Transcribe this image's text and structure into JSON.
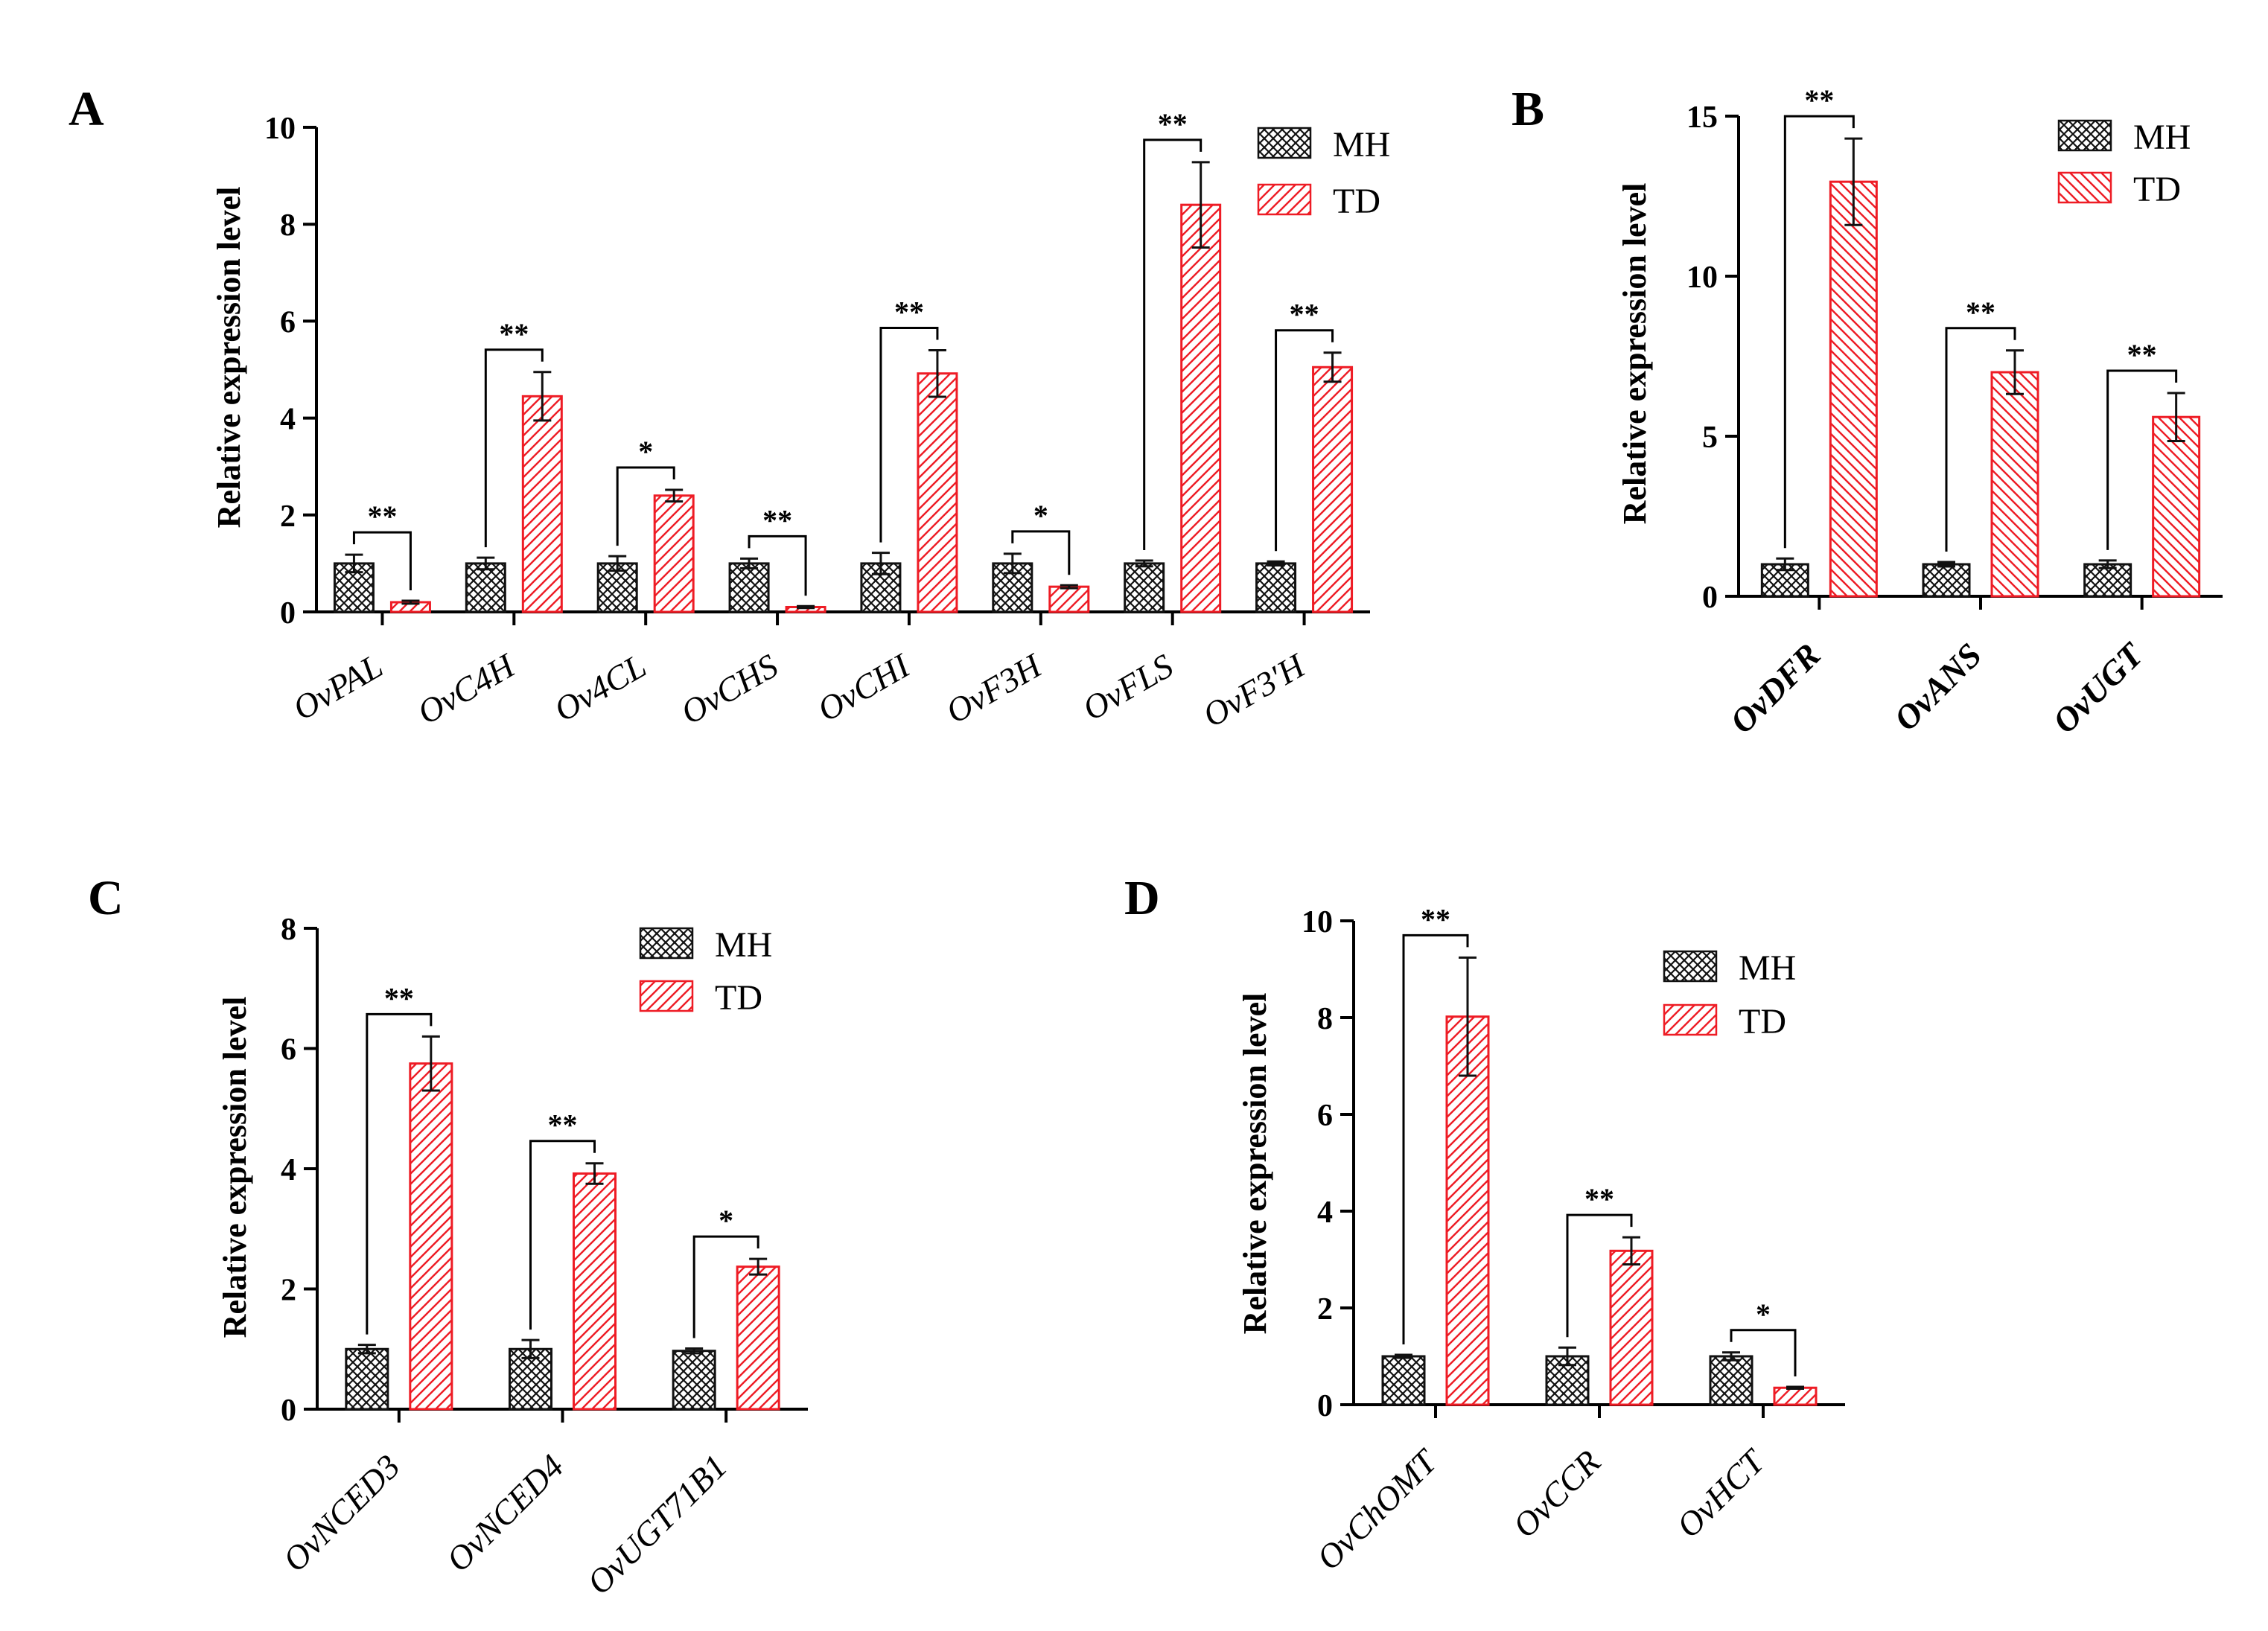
{
  "colors": {
    "mh_stroke": "#111111",
    "td_stroke": "#ee1c25",
    "axis": "#000000",
    "background": "#ffffff"
  },
  "chart_data": [
    {
      "panel_label": "A",
      "type": "bar",
      "ylabel": "Relative expression level",
      "ylim": [
        0,
        10
      ],
      "yticks": [
        "0",
        "2",
        "4",
        "6",
        "8",
        "10"
      ],
      "legend": {
        "placement": "top-right",
        "entries": [
          "MH",
          "TD"
        ]
      },
      "categories": [
        "OvPAL",
        "OvC4H",
        "Ov4CL",
        "OvCHS",
        "OvCHI",
        "OvF3H",
        "OvFLS",
        "OvF3′H"
      ],
      "series": [
        {
          "name": "MH",
          "values": [
            1.0,
            1.0,
            1.0,
            1.0,
            1.0,
            1.0,
            1.0,
            1.0
          ],
          "errors": [
            0.18,
            0.12,
            0.15,
            0.1,
            0.22,
            0.2,
            0.06,
            0.04
          ]
        },
        {
          "name": "TD",
          "values": [
            0.2,
            4.45,
            2.4,
            0.1,
            4.92,
            0.52,
            8.4,
            5.05
          ],
          "errors": [
            0.03,
            0.5,
            0.12,
            0.02,
            0.48,
            0.03,
            0.88,
            0.3
          ]
        }
      ],
      "significance": [
        "**",
        "**",
        "*",
        "**",
        "**",
        "*",
        "**",
        "**"
      ]
    },
    {
      "panel_label": "B",
      "type": "bar",
      "ylabel": "Relative expression level",
      "ylim": [
        0,
        15
      ],
      "yticks": [
        "0",
        "5",
        "10",
        "15"
      ],
      "legend": {
        "placement": "top-right",
        "entries": [
          "MH",
          "TD"
        ]
      },
      "categories": [
        "OvDFR",
        "OvANS",
        "OvUGT"
      ],
      "series": [
        {
          "name": "MH",
          "values": [
            1.0,
            1.0,
            1.0
          ],
          "errors": [
            0.18,
            0.07,
            0.12
          ]
        },
        {
          "name": "TD",
          "values": [
            12.95,
            7.0,
            5.6
          ],
          "errors": [
            1.35,
            0.68,
            0.75
          ]
        }
      ],
      "significance": [
        "**",
        "**",
        "**"
      ]
    },
    {
      "panel_label": "C",
      "type": "bar",
      "ylabel": "Relative expression level",
      "ylim": [
        0,
        8
      ],
      "yticks": [
        "0",
        "2",
        "4",
        "6",
        "8"
      ],
      "legend": {
        "placement": "top-right",
        "entries": [
          "MH",
          "TD"
        ]
      },
      "categories": [
        "OvNCED3",
        "OvNCED4",
        "OvUGT71B1"
      ],
      "series": [
        {
          "name": "MH",
          "values": [
            1.0,
            1.0,
            0.97
          ],
          "errors": [
            0.07,
            0.15,
            0.04
          ]
        },
        {
          "name": "TD",
          "values": [
            5.75,
            3.92,
            2.37
          ],
          "errors": [
            0.45,
            0.17,
            0.13
          ]
        }
      ],
      "significance": [
        "**",
        "**",
        "*"
      ]
    },
    {
      "panel_label": "D",
      "type": "bar",
      "ylabel": "Relative expression level",
      "ylim": [
        0,
        10
      ],
      "yticks": [
        "0",
        "2",
        "4",
        "6",
        "8",
        "10"
      ],
      "legend": {
        "placement": "top-right",
        "entries": [
          "MH",
          "TD"
        ]
      },
      "categories": [
        "OvChOMT",
        "OvCCR",
        "OvHCT"
      ],
      "series": [
        {
          "name": "MH",
          "values": [
            1.0,
            1.0,
            1.0
          ],
          "errors": [
            0.03,
            0.18,
            0.08
          ]
        },
        {
          "name": "TD",
          "values": [
            8.02,
            3.18,
            0.35
          ],
          "errors": [
            1.22,
            0.28,
            0.02
          ]
        }
      ],
      "significance": [
        "**",
        "**",
        "*"
      ]
    }
  ]
}
